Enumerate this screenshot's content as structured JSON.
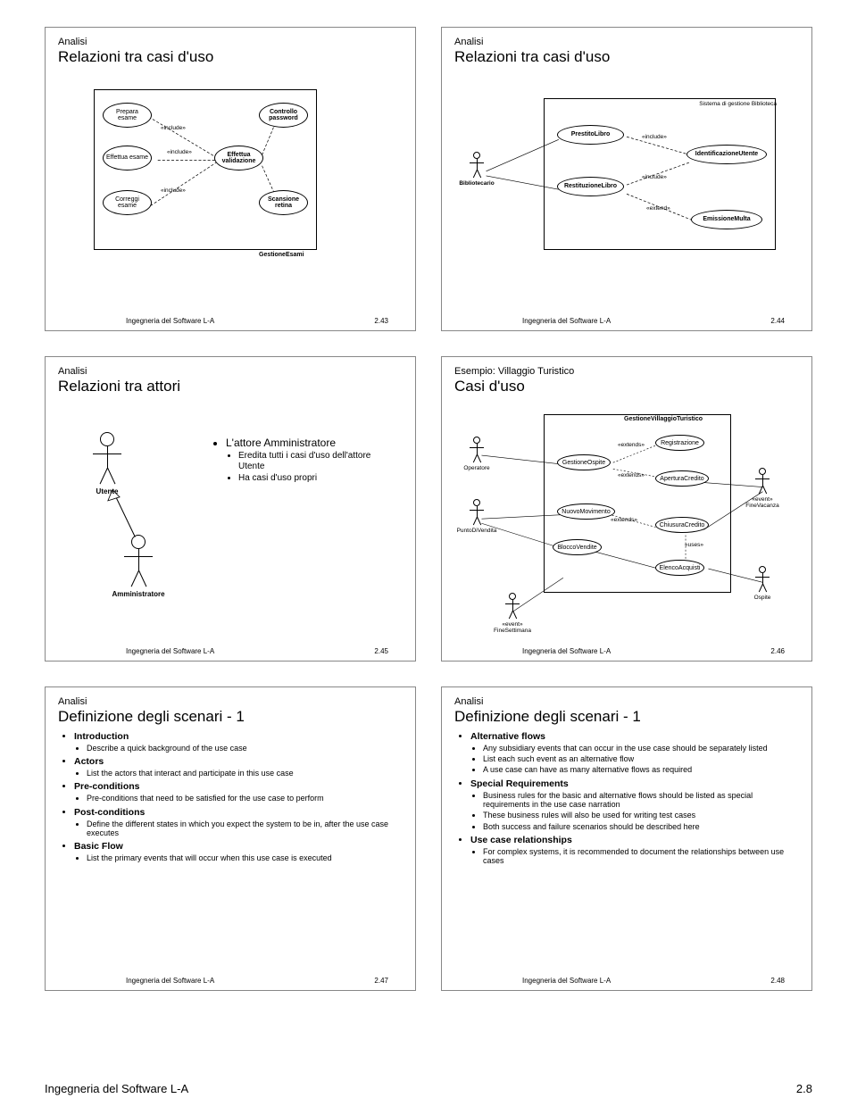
{
  "footer": {
    "course": "Ingegneria del Software L-A",
    "page": "2.8"
  },
  "slide_footer_label": "Ingegneria del Software L-A",
  "slides": {
    "s43": {
      "hdr": "Analisi",
      "title": "Relazioni tra casi d'uso",
      "num": "2.43",
      "sys": "GestioneEsami",
      "nodes": {
        "prepara": "Prepara\nesame",
        "effettua_esame": "Effettua\nesame",
        "correggi": "Correggi\nesame",
        "controllo": "Controllo\npassword",
        "effettua_val": "Effettua validazione",
        "scansione": "Scansione\nretina"
      },
      "rel": "«include»"
    },
    "s44": {
      "hdr": "Analisi",
      "title": "Relazioni tra casi d'uso",
      "num": "2.44",
      "sys": "Sistema di gestione Biblioteca",
      "actor": "Bibliotecario",
      "nodes": {
        "prestito": "PrestitoLibro",
        "restituzione": "RestituzioneLibro",
        "identif": "IdentificazioneUtente",
        "multa": "EmissioneMulta"
      },
      "rel_inc": "«include»",
      "rel_ext": "«extend»"
    },
    "s45": {
      "hdr": "Analisi",
      "title": "Relazioni tra attori",
      "num": "2.45",
      "actor1": "Utente",
      "actor2": "Amministratore",
      "b1": "L'attore Amministratore",
      "b1a": "Eredita tutti i casi d'uso dell'attore Utente",
      "b1b": "Ha casi d'uso propri"
    },
    "s46": {
      "hdr": "Esempio: Villaggio Turistico",
      "title": "Casi d'uso",
      "num": "2.46",
      "sys": "GestioneVillaggioTuristico",
      "actors": {
        "op": "Operatore",
        "pv": "PuntoDiVendita",
        "osp": "Ospite"
      },
      "nodes": {
        "gest": "GestioneOspite",
        "reg": "Registrazione",
        "apc": "AperturaCredito",
        "nm": "NuovoMovimento",
        "cc": "ChiusuraCredito",
        "bv": "BloccoVendite",
        "ea": "ElencoAcquisti"
      },
      "events": {
        "fv": "«event»\nFineVacanza",
        "fs": "«event»\nFineSettimana"
      },
      "rel_ext": "«extends»",
      "rel_use": "«uses»"
    },
    "s47": {
      "hdr": "Analisi",
      "title": "Definizione degli scenari - 1",
      "num": "2.47",
      "items": [
        {
          "h": "Introduction",
          "sub": [
            "Describe a quick background of the use case"
          ]
        },
        {
          "h": "Actors",
          "sub": [
            "List the actors that interact and participate in this use case"
          ]
        },
        {
          "h": "Pre-conditions",
          "sub": [
            "Pre-conditions that need to be satisfied for the use case to perform"
          ]
        },
        {
          "h": "Post-conditions",
          "sub": [
            "Define the different states in which you expect the system to be in, after the use case executes"
          ]
        },
        {
          "h": "Basic Flow",
          "sub": [
            "List the primary events that will occur when this use case is executed"
          ]
        }
      ]
    },
    "s48": {
      "hdr": "Analisi",
      "title": "Definizione degli scenari - 1",
      "num": "2.48",
      "items": [
        {
          "h": "Alternative flows",
          "sub": [
            "Any subsidiary events that can occur in the use case should be separately listed",
            "List each such event as an alternative flow",
            "A use case can have as many alternative flows as required"
          ]
        },
        {
          "h": "Special Requirements",
          "sub": [
            "Business rules for the basic and alternative flows should be listed as special requirements in the use case narration",
            "These business rules will also be used for writing test cases",
            "Both success and failure scenarios should be described here"
          ]
        },
        {
          "h": "Use case relationships",
          "sub": [
            "For complex systems, it is recommended to document the relationships between use cases"
          ]
        }
      ]
    }
  }
}
